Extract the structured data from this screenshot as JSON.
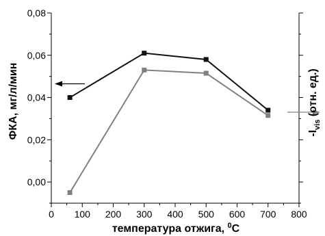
{
  "chart_data": {
    "type": "line",
    "xlabel": "температура отжига, ",
    "xlabel_sup": "0",
    "xlabel_unit": "C",
    "ylabel": "ФКА, мг/л/мин",
    "y2label_prefix": "-I",
    "y2label_sub": "vis",
    "y2label_suffix": " (отн. ед.)",
    "xlim": [
      0,
      800
    ],
    "ylim": [
      -0.01,
      0.08
    ],
    "xticks": [
      0,
      100,
      200,
      300,
      400,
      500,
      600,
      700,
      800
    ],
    "xtick_labels": [
      "0",
      "100",
      "200",
      "300",
      "400",
      "500",
      "600",
      "700",
      "800"
    ],
    "yticks": [
      0.0,
      0.02,
      0.04,
      0.06,
      0.08
    ],
    "ytick_labels": [
      "0,00",
      "0,02",
      "0,04",
      "0,06",
      "0,08"
    ],
    "grid": false,
    "series": [
      {
        "axis": "left",
        "color": "#111111",
        "x": [
          60,
          300,
          500,
          700
        ],
        "y": [
          0.04,
          0.061,
          0.058,
          0.034
        ]
      },
      {
        "axis": "right",
        "color": "#808080",
        "x": [
          60,
          300,
          500,
          700
        ],
        "y": [
          -0.005,
          0.053,
          0.0515,
          0.0315
        ]
      }
    ]
  }
}
